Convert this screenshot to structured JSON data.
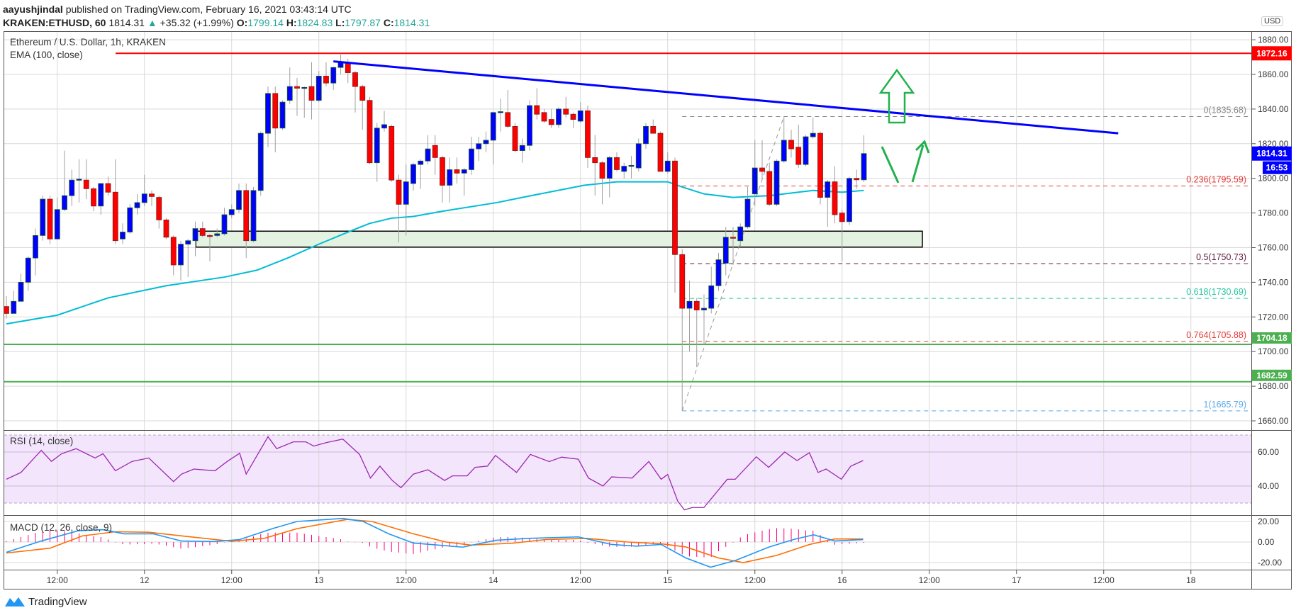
{
  "header": {
    "author": "aayushjindal",
    "published": "published on TradingView.com, February 16, 2021 03:43:14 UTC",
    "symbol": "KRAKEN:ETHUSD, 60",
    "last": "1814.31",
    "change": "+35.32 (+1.99%)",
    "o_label": "O:",
    "o": "1799.14",
    "h_label": "H:",
    "h": "1824.83",
    "l_label": "L:",
    "l": "1797.87",
    "c_label": "C:",
    "c": "1814.31"
  },
  "legend": {
    "title": "Ethereum / U.S. Dollar, 1h, KRAKEN",
    "ema": "EMA (100, close)",
    "rsi": "RSI (14, close)",
    "macd": "MACD (12, 26, close, 9)"
  },
  "price_axis": {
    "currency": "USD",
    "ticks": [
      "1880.00",
      "1860.00",
      "1840.00",
      "1820.00",
      "1800.00",
      "1780.00",
      "1760.00",
      "1740.00",
      "1720.00",
      "1700.00",
      "1680.00",
      "1660.00"
    ],
    "tags": [
      {
        "label": "1872.16",
        "value": 1872.16,
        "color": "#ff0000"
      },
      {
        "label": "1814.31",
        "value": 1814.31,
        "color": "#0000ff",
        "countdown": "16:53"
      },
      {
        "label": "1704.18",
        "value": 1704.18,
        "color": "#4caf50"
      },
      {
        "label": "1682.59",
        "value": 1682.59,
        "color": "#4caf50"
      }
    ]
  },
  "rsi_axis": {
    "ticks": [
      "60.00",
      "40.00"
    ]
  },
  "macd_axis": {
    "ticks": [
      "20.00",
      "0.00",
      "-20.00"
    ]
  },
  "time_axis": {
    "labels": [
      "12:00",
      "12",
      "12:00",
      "13",
      "12:00",
      "14",
      "12:00",
      "15",
      "12:00",
      "16",
      "12:00",
      "17",
      "12:00",
      "18"
    ]
  },
  "fib_levels": [
    {
      "label": "0(1835.68)",
      "value": 1835.68,
      "color": "#888888"
    },
    {
      "label": "0.236(1795.59)",
      "value": 1795.59,
      "color": "#e53935"
    },
    {
      "label": "0.5(1750.73)",
      "value": 1750.73,
      "color": "#5d1a3c"
    },
    {
      "label": "0.618(1730.69)",
      "value": 1730.69,
      "color": "#26c6a0"
    },
    {
      "label": "0.764(1705.88)",
      "value": 1705.88,
      "color": "#e53935"
    },
    {
      "label": "1(1665.79)",
      "value": 1665.79,
      "color": "#5aa9e6"
    }
  ],
  "colors": {
    "up": "#0000ff",
    "down": "#ff0000",
    "ema": "#00bcd4",
    "rsi": "#9c27b0",
    "macd": "#2196f3",
    "signal": "#ff6d00",
    "hist": "#ff0080",
    "resistance": "#ff0000",
    "trendline": "#0000ff",
    "support": "#4caf50",
    "arrows": "#22b14c"
  },
  "logo": "TradingView",
  "chart_data": {
    "type": "candlestick",
    "title": "Ethereum / U.S. Dollar, 1h, KRAKEN",
    "ylim": [
      1650,
      1885
    ],
    "ohlc_note": "[open, high, low, close] per hourly candle",
    "candles": [
      [
        1726,
        1732,
        1719,
        1722
      ],
      [
        1722,
        1735,
        1722,
        1729
      ],
      [
        1729,
        1745,
        1729,
        1740
      ],
      [
        1740,
        1755,
        1735,
        1754
      ],
      [
        1754,
        1771,
        1744,
        1767
      ],
      [
        1767,
        1790,
        1764,
        1788
      ],
      [
        1788,
        1790,
        1762,
        1765
      ],
      [
        1765,
        1789,
        1765,
        1782
      ],
      [
        1782,
        1816,
        1781,
        1790
      ],
      [
        1790,
        1805,
        1784,
        1799
      ],
      [
        1799,
        1811,
        1786,
        1799.5
      ],
      [
        1799,
        1811,
        1788,
        1794
      ],
      [
        1794,
        1795,
        1781,
        1784
      ],
      [
        1784,
        1797,
        1779,
        1797
      ],
      [
        1797,
        1801,
        1790,
        1792
      ],
      [
        1792,
        1811,
        1762,
        1764
      ],
      [
        1765,
        1774,
        1762,
        1769
      ],
      [
        1769,
        1785,
        1768,
        1783
      ],
      [
        1783,
        1791,
        1779,
        1786
      ],
      [
        1786,
        1802,
        1784,
        1791
      ],
      [
        1791,
        1793,
        1784,
        1789.5
      ],
      [
        1789,
        1790,
        1771,
        1776
      ],
      [
        1776,
        1777,
        1765,
        1766
      ],
      [
        1766,
        1767,
        1744,
        1750
      ],
      [
        1750,
        1764,
        1741,
        1762
      ],
      [
        1762,
        1765,
        1743,
        1764
      ],
      [
        1764,
        1775,
        1755,
        1771
      ],
      [
        1771,
        1775,
        1766,
        1767
      ],
      [
        1767,
        1768,
        1752,
        1766.5
      ],
      [
        1767,
        1771,
        1766,
        1768
      ],
      [
        1768,
        1783,
        1767,
        1779
      ],
      [
        1779,
        1785,
        1777,
        1782
      ],
      [
        1782,
        1797,
        1780,
        1793
      ],
      [
        1793,
        1797,
        1754,
        1764
      ],
      [
        1764,
        1795,
        1763,
        1793
      ],
      [
        1793,
        1827,
        1790,
        1826
      ],
      [
        1826,
        1853,
        1818,
        1849
      ],
      [
        1849,
        1853,
        1815,
        1829
      ],
      [
        1829,
        1845,
        1828,
        1844
      ],
      [
        1845,
        1864,
        1843,
        1853
      ],
      [
        1853,
        1858,
        1836,
        1852
      ],
      [
        1852,
        1853,
        1835,
        1852.5
      ],
      [
        1853,
        1867,
        1834,
        1845
      ],
      [
        1845,
        1862,
        1844,
        1859
      ],
      [
        1859,
        1867,
        1853,
        1855
      ],
      [
        1855,
        1864.5,
        1851,
        1864
      ],
      [
        1864,
        1872,
        1860,
        1867
      ],
      [
        1867,
        1869,
        1855,
        1861
      ],
      [
        1861,
        1862,
        1838,
        1853
      ],
      [
        1853,
        1854,
        1828,
        1845
      ],
      [
        1845,
        1847,
        1808,
        1809
      ],
      [
        1809,
        1832,
        1798,
        1829
      ],
      [
        1829,
        1839,
        1827,
        1831
      ],
      [
        1830,
        1831,
        1798,
        1799
      ],
      [
        1799,
        1802,
        1763,
        1785
      ],
      [
        1785,
        1808,
        1767,
        1798
      ],
      [
        1797,
        1809,
        1793,
        1808
      ],
      [
        1808,
        1811,
        1794,
        1810
      ],
      [
        1810,
        1825,
        1808,
        1817
      ],
      [
        1819,
        1825,
        1802,
        1812
      ],
      [
        1812,
        1813,
        1786,
        1796
      ],
      [
        1796,
        1812,
        1786,
        1805
      ],
      [
        1805,
        1812,
        1797,
        1803
      ],
      [
        1803,
        1806,
        1790,
        1805
      ],
      [
        1805,
        1824,
        1802,
        1817
      ],
      [
        1817,
        1824,
        1810,
        1820
      ],
      [
        1820,
        1827,
        1815,
        1822
      ],
      [
        1822,
        1838.5,
        1808,
        1838
      ],
      [
        1838,
        1846,
        1827,
        1838.5
      ],
      [
        1838,
        1851,
        1829,
        1830
      ],
      [
        1830,
        1832,
        1815,
        1816
      ],
      [
        1816,
        1823,
        1809,
        1819
      ],
      [
        1819,
        1845,
        1816,
        1842
      ],
      [
        1842,
        1852,
        1834,
        1837
      ],
      [
        1838,
        1840,
        1832,
        1833
      ],
      [
        1834,
        1840,
        1829,
        1831
      ],
      [
        1831,
        1841,
        1829,
        1840
      ],
      [
        1840,
        1847,
        1835,
        1837
      ],
      [
        1837,
        1838,
        1829,
        1834
      ],
      [
        1833,
        1844,
        1832,
        1839
      ],
      [
        1839,
        1842,
        1806,
        1812
      ],
      [
        1812,
        1825,
        1790,
        1809
      ],
      [
        1809,
        1810,
        1785,
        1800
      ],
      [
        1800,
        1813,
        1789,
        1812
      ],
      [
        1812,
        1815,
        1804,
        1805
      ],
      [
        1804,
        1809,
        1800,
        1807
      ],
      [
        1807,
        1813,
        1800,
        1807.5
      ],
      [
        1806,
        1823,
        1804,
        1820
      ],
      [
        1820,
        1832,
        1817,
        1830
      ],
      [
        1830,
        1834,
        1826,
        1826
      ],
      [
        1826,
        1827,
        1804,
        1804
      ],
      [
        1804,
        1815,
        1803,
        1810
      ],
      [
        1810,
        1812,
        1734,
        1756
      ],
      [
        1756,
        1759,
        1665.79,
        1725
      ],
      [
        1725,
        1741,
        1700,
        1729
      ],
      [
        1729,
        1731,
        1691,
        1724
      ],
      [
        1724,
        1733,
        1704,
        1725
      ],
      [
        1725,
        1749,
        1722,
        1738
      ],
      [
        1738,
        1757,
        1735,
        1753
      ],
      [
        1751,
        1772,
        1744,
        1766
      ],
      [
        1766,
        1772,
        1750,
        1765.5
      ],
      [
        1764,
        1774,
        1761,
        1772
      ],
      [
        1772,
        1795,
        1771,
        1788
      ],
      [
        1791,
        1822,
        1784,
        1806
      ],
      [
        1806,
        1822,
        1800,
        1804
      ],
      [
        1804,
        1809,
        1784,
        1785
      ],
      [
        1785,
        1811,
        1784,
        1810
      ],
      [
        1810,
        1835.68,
        1809,
        1822
      ],
      [
        1822,
        1828,
        1812,
        1817
      ],
      [
        1818,
        1831,
        1806,
        1808
      ],
      [
        1808,
        1825,
        1807,
        1824
      ],
      [
        1824,
        1835,
        1823,
        1826
      ],
      [
        1826,
        1827,
        1785,
        1789
      ],
      [
        1789,
        1799,
        1772,
        1798
      ],
      [
        1798,
        1807,
        1774,
        1779
      ],
      [
        1780,
        1782,
        1752,
        1775
      ],
      [
        1775,
        1801,
        1773,
        1800
      ],
      [
        1800,
        1805,
        1794,
        1799.14
      ],
      [
        1799.14,
        1824.83,
        1797.87,
        1814.31
      ]
    ],
    "ema100": [
      [
        0,
        1716
      ],
      [
        7,
        1721
      ],
      [
        14,
        1731
      ],
      [
        22,
        1738
      ],
      [
        30,
        1743
      ],
      [
        34.5,
        1747
      ],
      [
        38.7,
        1754
      ],
      [
        43,
        1762
      ],
      [
        47.6,
        1770
      ],
      [
        50,
        1774
      ],
      [
        53,
        1777
      ],
      [
        56,
        1778
      ],
      [
        60,
        1781
      ],
      [
        67.5,
        1786
      ],
      [
        71,
        1789
      ],
      [
        79.5,
        1796
      ],
      [
        84,
        1798
      ],
      [
        87,
        1798
      ],
      [
        91,
        1798
      ],
      [
        93,
        1795
      ],
      [
        96,
        1791
      ],
      [
        100,
        1789
      ],
      [
        105,
        1790
      ],
      [
        111,
        1793
      ],
      [
        115,
        1792
      ],
      [
        118,
        1793
      ]
    ],
    "resistance_level": 1872.16,
    "support_levels": [
      1704.18,
      1682.59
    ],
    "support_zone": [
      1760.3,
      1769.5
    ],
    "trendline": [
      [
        45,
        1867.5
      ],
      [
        153,
        1826
      ]
    ],
    "fib_anchor": [
      [
        93,
        1665.79
      ],
      [
        107,
        1835.68
      ]
    ],
    "rsi": {
      "range": [
        30,
        70
      ],
      "points": [
        [
          0,
          44
        ],
        [
          2,
          48
        ],
        [
          4.8,
          61
        ],
        [
          6.2,
          54.5
        ],
        [
          7.6,
          59
        ],
        [
          9.6,
          62
        ],
        [
          12.2,
          56.5
        ],
        [
          13.3,
          59
        ],
        [
          15,
          49
        ],
        [
          17.3,
          54.5
        ],
        [
          19.6,
          56.5
        ],
        [
          23,
          42.6
        ],
        [
          24.1,
          47
        ],
        [
          25.8,
          50
        ],
        [
          28.7,
          49
        ],
        [
          30.4,
          54.5
        ],
        [
          32.1,
          59.3
        ],
        [
          33,
          47
        ],
        [
          36,
          69
        ],
        [
          37.2,
          62
        ],
        [
          39.5,
          66
        ],
        [
          41.2,
          66
        ],
        [
          42.3,
          63.5
        ],
        [
          44,
          65.5
        ],
        [
          46.3,
          67.6
        ],
        [
          48.6,
          58.6
        ],
        [
          50.1,
          44.7
        ],
        [
          51.4,
          51.7
        ],
        [
          53.1,
          43.3
        ],
        [
          54.3,
          39
        ],
        [
          56,
          47
        ],
        [
          58,
          49.6
        ],
        [
          60.3,
          43.3
        ],
        [
          61.4,
          46
        ],
        [
          63.4,
          46
        ],
        [
          64.5,
          51
        ],
        [
          66.2,
          51.7
        ],
        [
          67.3,
          58
        ],
        [
          70.2,
          48
        ],
        [
          72.1,
          58.6
        ],
        [
          74.7,
          54.4
        ],
        [
          76.4,
          57
        ],
        [
          78.7,
          55.8
        ],
        [
          80.1,
          44.7
        ],
        [
          82.1,
          40
        ],
        [
          83.3,
          45.4
        ],
        [
          86.1,
          44.7
        ],
        [
          88.4,
          54.4
        ],
        [
          90.1,
          44
        ],
        [
          91,
          46.8
        ],
        [
          92.4,
          31
        ],
        [
          93.3,
          26
        ],
        [
          94.4,
          27.4
        ],
        [
          96,
          27.4
        ],
        [
          99.2,
          44
        ],
        [
          100.3,
          44
        ],
        [
          103.2,
          57.2
        ],
        [
          104.9,
          51
        ],
        [
          107.1,
          60
        ],
        [
          108.8,
          55
        ],
        [
          110.5,
          59.6
        ],
        [
          111.7,
          48
        ],
        [
          112.8,
          50
        ],
        [
          114.9,
          44
        ],
        [
          116.2,
          51.7
        ],
        [
          117.9,
          55
        ]
      ]
    },
    "macd": {
      "macd_line": [
        [
          0,
          -10
        ],
        [
          4.8,
          1
        ],
        [
          9.9,
          11
        ],
        [
          13.3,
          12
        ],
        [
          16.2,
          8
        ],
        [
          20.2,
          8
        ],
        [
          24.1,
          1
        ],
        [
          28.7,
          0.5
        ],
        [
          32.1,
          2.4
        ],
        [
          36.6,
          13
        ],
        [
          40,
          20
        ],
        [
          46.3,
          23
        ],
        [
          49.1,
          20
        ],
        [
          52.6,
          8
        ],
        [
          56,
          -1
        ],
        [
          62.8,
          -5
        ],
        [
          67.3,
          1.7
        ],
        [
          71.9,
          3.6
        ],
        [
          78.7,
          5
        ],
        [
          83.3,
          -2.4
        ],
        [
          86.7,
          -4
        ],
        [
          90.1,
          -2.4
        ],
        [
          93.5,
          -15.5
        ],
        [
          96.9,
          -24.5
        ],
        [
          100.3,
          -18
        ],
        [
          104.9,
          -5
        ],
        [
          108.3,
          2.4
        ],
        [
          111.1,
          7
        ],
        [
          114,
          1
        ],
        [
          117.9,
          2.4
        ]
      ],
      "signal_line": [
        [
          0,
          -10.7
        ],
        [
          6,
          -6
        ],
        [
          10.5,
          6
        ],
        [
          15,
          10
        ],
        [
          19.6,
          9.5
        ],
        [
          24.1,
          6
        ],
        [
          31,
          0.7
        ],
        [
          35.5,
          3.6
        ],
        [
          40,
          13
        ],
        [
          46.9,
          22
        ],
        [
          50.3,
          20
        ],
        [
          56,
          8
        ],
        [
          60.5,
          0
        ],
        [
          63.9,
          -3
        ],
        [
          69.6,
          -1.2
        ],
        [
          74.2,
          2.4
        ],
        [
          79.8,
          3.6
        ],
        [
          85.5,
          0
        ],
        [
          90.1,
          -1.7
        ],
        [
          93.5,
          -4.8
        ],
        [
          98,
          -15.5
        ],
        [
          101.4,
          -20
        ],
        [
          106,
          -13
        ],
        [
          110.5,
          -2.4
        ],
        [
          114,
          3
        ],
        [
          117.9,
          3
        ]
      ]
    }
  }
}
